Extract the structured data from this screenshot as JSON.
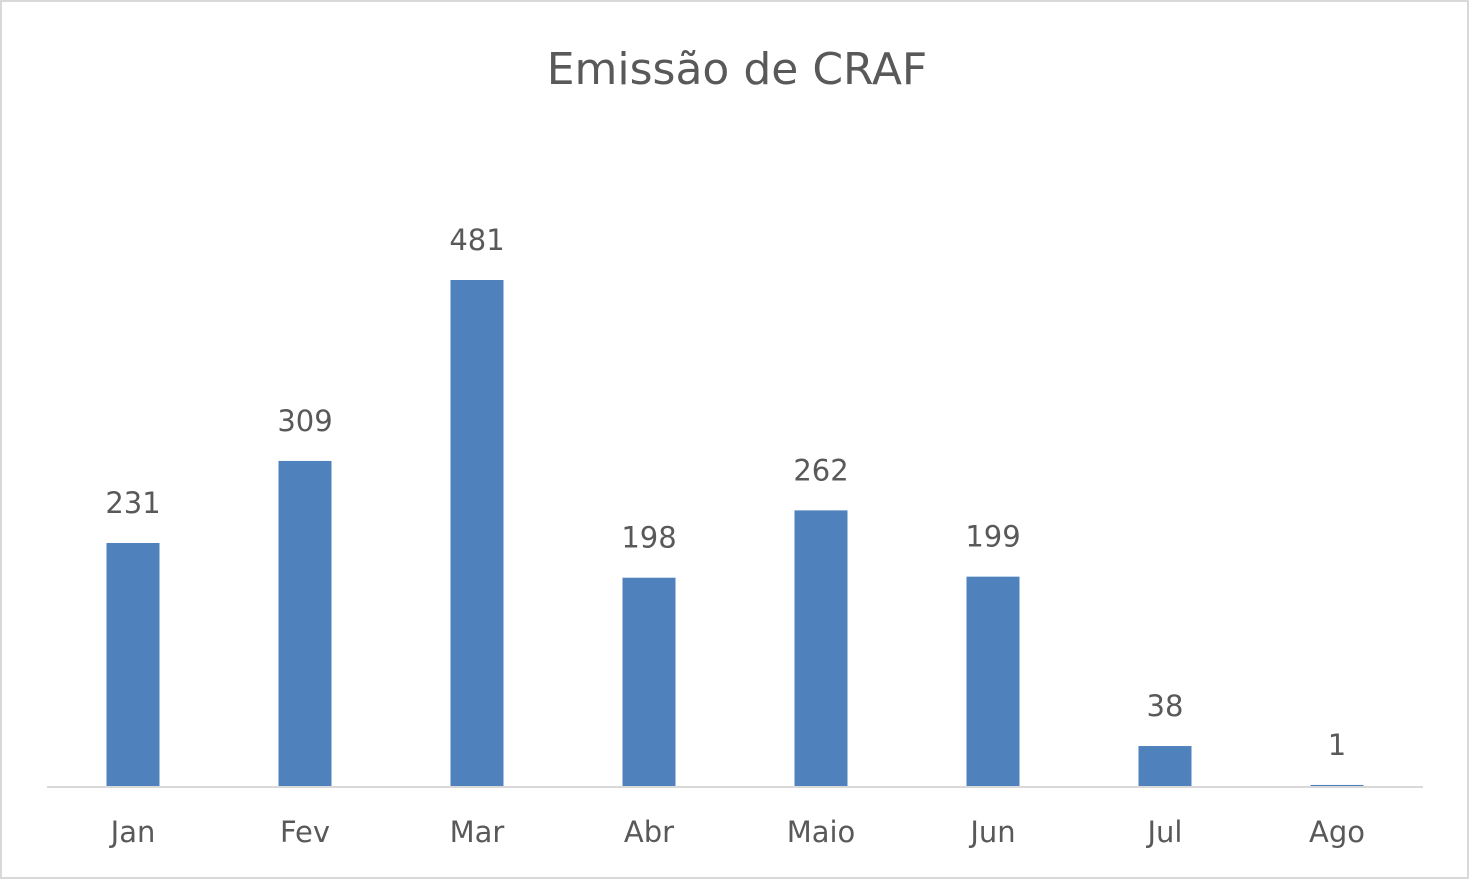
{
  "chart_data": {
    "type": "bar",
    "title": "Emissão de CRAF",
    "categories": [
      "Jan",
      "Fev",
      "Mar",
      "Abr",
      "Maio",
      "Jun",
      "Jul",
      "Ago"
    ],
    "values": [
      231,
      309,
      481,
      198,
      262,
      199,
      38,
      1
    ],
    "color": "#4f81bd",
    "grid": false
  }
}
